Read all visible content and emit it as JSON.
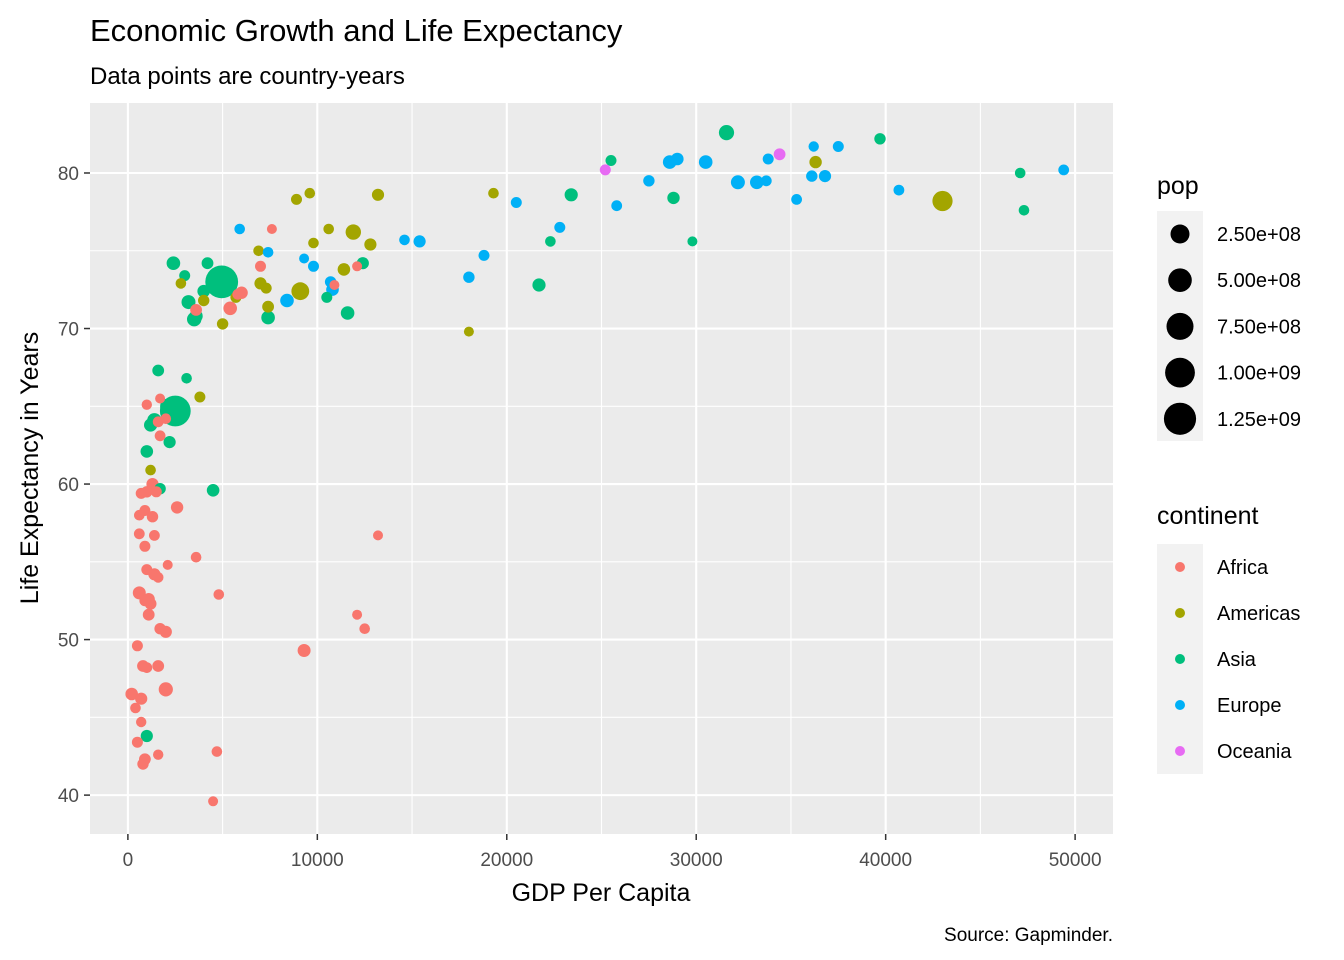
{
  "chart_data": {
    "type": "scatter",
    "title": "Economic Growth and Life Expectancy",
    "subtitle": "Data points are country-years",
    "xlabel": "GDP Per Capita",
    "ylabel": "Life Expectancy in Years",
    "caption": "Source: Gapminder.",
    "xlim": [
      -2000,
      52000
    ],
    "ylim": [
      37.5,
      84.5
    ],
    "xticks": [
      0,
      10000,
      20000,
      30000,
      40000,
      50000
    ],
    "xtick_labels": [
      "0",
      "10000",
      "20000",
      "30000",
      "40000",
      "50000"
    ],
    "yticks": [
      40,
      50,
      60,
      70,
      80
    ],
    "ytick_labels": [
      "40",
      "50",
      "60",
      "70",
      "80"
    ],
    "grid": true,
    "legend_position": "right",
    "size_legend": {
      "title": "pop",
      "items": [
        {
          "label": "2.50e+08",
          "value": 250000000
        },
        {
          "label": "5.00e+08",
          "value": 500000000
        },
        {
          "label": "7.50e+08",
          "value": 750000000
        },
        {
          "label": "1.00e+09",
          "value": 1000000000
        },
        {
          "label": "1.25e+09",
          "value": 1250000000
        }
      ]
    },
    "color_legend": {
      "title": "continent",
      "items": [
        {
          "label": "Africa",
          "color": "#F8766D"
        },
        {
          "label": "Americas",
          "color": "#A3A500"
        },
        {
          "label": "Asia",
          "color": "#00BF7D"
        },
        {
          "label": "Europe",
          "color": "#00B0F6"
        },
        {
          "label": "Oceania",
          "color": "#E76BF3"
        }
      ]
    },
    "series": [
      {
        "name": "Africa",
        "color": "#F8766D",
        "points": [
          [
            200,
            46.5,
            40000000
          ],
          [
            500,
            49.6,
            15000000
          ],
          [
            400,
            45.6,
            10000000
          ],
          [
            500,
            43.4,
            15000000
          ],
          [
            700,
            44.7,
            8000000
          ],
          [
            800,
            42.0,
            20000000
          ],
          [
            900,
            42.3,
            25000000
          ],
          [
            1600,
            42.6,
            8000000
          ],
          [
            700,
            46.2,
            30000000
          ],
          [
            800,
            48.3,
            25000000
          ],
          [
            1000,
            48.2,
            12000000
          ],
          [
            1600,
            48.3,
            25000000
          ],
          [
            2000,
            46.8,
            75000000
          ],
          [
            600,
            53.0,
            45000000
          ],
          [
            900,
            52.5,
            15000000
          ],
          [
            1100,
            52.6,
            30000000
          ],
          [
            1200,
            52.3,
            25000000
          ],
          [
            1100,
            51.6,
            25000000
          ],
          [
            1700,
            50.7,
            20000000
          ],
          [
            2000,
            50.5,
            30000000
          ],
          [
            1000,
            54.5,
            15000000
          ],
          [
            1400,
            54.2,
            30000000
          ],
          [
            1600,
            54.0,
            10000000
          ],
          [
            2100,
            54.8,
            6000000
          ],
          [
            600,
            56.8,
            12000000
          ],
          [
            900,
            56.0,
            15000000
          ],
          [
            1400,
            56.7,
            12000000
          ],
          [
            600,
            58.0,
            10000000
          ],
          [
            900,
            58.3,
            15000000
          ],
          [
            1300,
            57.9,
            20000000
          ],
          [
            700,
            59.4,
            15000000
          ],
          [
            1000,
            59.5,
            20000000
          ],
          [
            1300,
            60.0,
            30000000
          ],
          [
            1500,
            59.5,
            15000000
          ],
          [
            2600,
            58.5,
            35000000
          ],
          [
            1600,
            64.0,
            12000000
          ],
          [
            1700,
            63.1,
            12000000
          ],
          [
            1700,
            65.5,
            6000000
          ],
          [
            1000,
            65.1,
            8000000
          ],
          [
            2000,
            64.2,
            10000000
          ],
          [
            3600,
            71.2,
            25000000
          ],
          [
            5400,
            71.3,
            60000000
          ],
          [
            5800,
            72.2,
            12000000
          ],
          [
            6000,
            72.3,
            35000000
          ],
          [
            7000,
            74.0,
            15000000
          ],
          [
            7600,
            76.4,
            5000000
          ],
          [
            3600,
            55.3,
            10000000
          ],
          [
            4700,
            42.8,
            10000000
          ],
          [
            4800,
            52.9,
            10000000
          ],
          [
            4500,
            39.6,
            6000000
          ],
          [
            9300,
            49.3,
            45000000
          ],
          [
            12100,
            51.6,
            6000000
          ],
          [
            12500,
            50.7,
            10000000
          ],
          [
            13200,
            56.7,
            5000000
          ],
          [
            12100,
            74.0,
            5000000
          ],
          [
            10900,
            72.8,
            6000000
          ]
        ]
      },
      {
        "name": "Americas",
        "color": "#A3A500",
        "points": [
          [
            1200,
            60.9,
            10000000
          ],
          [
            3800,
            65.6,
            15000000
          ],
          [
            2800,
            72.9,
            10000000
          ],
          [
            4000,
            71.8,
            20000000
          ],
          [
            5000,
            70.3,
            20000000
          ],
          [
            5700,
            72.0,
            15000000
          ],
          [
            6900,
            75.0,
            10000000
          ],
          [
            7000,
            72.9,
            30000000
          ],
          [
            7300,
            72.6,
            15000000
          ],
          [
            7400,
            71.4,
            25000000
          ],
          [
            8900,
            78.3,
            15000000
          ],
          [
            9100,
            72.4,
            190000000
          ],
          [
            9600,
            78.7,
            10000000
          ],
          [
            9800,
            75.5,
            10000000
          ],
          [
            10600,
            76.4,
            10000000
          ],
          [
            11400,
            73.8,
            40000000
          ],
          [
            11900,
            76.2,
            110000000
          ],
          [
            12800,
            75.4,
            30000000
          ],
          [
            13200,
            78.6,
            30000000
          ],
          [
            18000,
            69.8,
            6000000
          ],
          [
            19300,
            78.7,
            10000000
          ],
          [
            36300,
            80.7,
            35000000
          ],
          [
            43000,
            78.2,
            300000000
          ]
        ]
      },
      {
        "name": "Asia",
        "color": "#00BF7D",
        "points": [
          [
            1000,
            43.8,
            30000000
          ],
          [
            1000,
            62.1,
            40000000
          ],
          [
            1200,
            63.8,
            50000000
          ],
          [
            1400,
            64.1,
            80000000
          ],
          [
            1600,
            67.3,
            25000000
          ],
          [
            1700,
            59.7,
            20000000
          ],
          [
            2100,
            65.0,
            100000000
          ],
          [
            2200,
            62.7,
            30000000
          ],
          [
            2500,
            64.7,
            1100000000
          ],
          [
            2400,
            74.2,
            60000000
          ],
          [
            3100,
            66.8,
            10000000
          ],
          [
            3000,
            73.4,
            15000000
          ],
          [
            3200,
            71.7,
            70000000
          ],
          [
            3500,
            70.6,
            80000000
          ],
          [
            3600,
            70.8,
            50000000
          ],
          [
            4000,
            72.4,
            40000000
          ],
          [
            4200,
            74.2,
            25000000
          ],
          [
            4500,
            59.6,
            40000000
          ],
          [
            4950,
            73.0,
            1300000000
          ],
          [
            7400,
            70.7,
            60000000
          ],
          [
            10500,
            72.0,
            15000000
          ],
          [
            11600,
            71.0,
            60000000
          ],
          [
            12400,
            74.2,
            30000000
          ],
          [
            21700,
            72.8,
            50000000
          ],
          [
            22300,
            75.6,
            10000000
          ],
          [
            23400,
            78.6,
            50000000
          ],
          [
            25500,
            80.8,
            15000000
          ],
          [
            28800,
            78.4,
            35000000
          ],
          [
            29800,
            75.6,
            6000000
          ],
          [
            31600,
            82.6,
            100000000
          ],
          [
            39700,
            82.2,
            20000000
          ],
          [
            47100,
            80.0,
            10000000
          ],
          [
            47300,
            77.6,
            10000000
          ]
        ]
      },
      {
        "name": "Europe",
        "color": "#00B0F6",
        "points": [
          [
            5900,
            76.4,
            10000000
          ],
          [
            7400,
            74.9,
            10000000
          ],
          [
            8400,
            71.8,
            60000000
          ],
          [
            9300,
            74.5,
            6000000
          ],
          [
            9800,
            74.0,
            15000000
          ],
          [
            10800,
            72.5,
            40000000
          ],
          [
            10700,
            73.0,
            20000000
          ],
          [
            14600,
            75.7,
            10000000
          ],
          [
            15400,
            75.6,
            30000000
          ],
          [
            18000,
            73.3,
            20000000
          ],
          [
            18800,
            74.7,
            15000000
          ],
          [
            20500,
            78.1,
            15000000
          ],
          [
            22800,
            76.5,
            15000000
          ],
          [
            25800,
            77.9,
            12000000
          ],
          [
            27500,
            79.5,
            20000000
          ],
          [
            28600,
            80.7,
            60000000
          ],
          [
            29000,
            80.9,
            40000000
          ],
          [
            30500,
            80.7,
            60000000
          ],
          [
            32200,
            79.4,
            70000000
          ],
          [
            33200,
            79.4,
            60000000
          ],
          [
            33700,
            79.5,
            12000000
          ],
          [
            33800,
            80.9,
            15000000
          ],
          [
            35300,
            78.3,
            12000000
          ],
          [
            36100,
            79.8,
            20000000
          ],
          [
            36200,
            81.7,
            8000000
          ],
          [
            36800,
            79.8,
            30000000
          ],
          [
            37500,
            81.7,
            15000000
          ],
          [
            40700,
            78.9,
            12000000
          ],
          [
            49400,
            80.2,
            12000000
          ]
        ]
      },
      {
        "name": "Oceania",
        "color": "#E76BF3",
        "points": [
          [
            25200,
            80.2,
            15000000
          ],
          [
            34400,
            81.2,
            25000000
          ]
        ]
      }
    ]
  }
}
